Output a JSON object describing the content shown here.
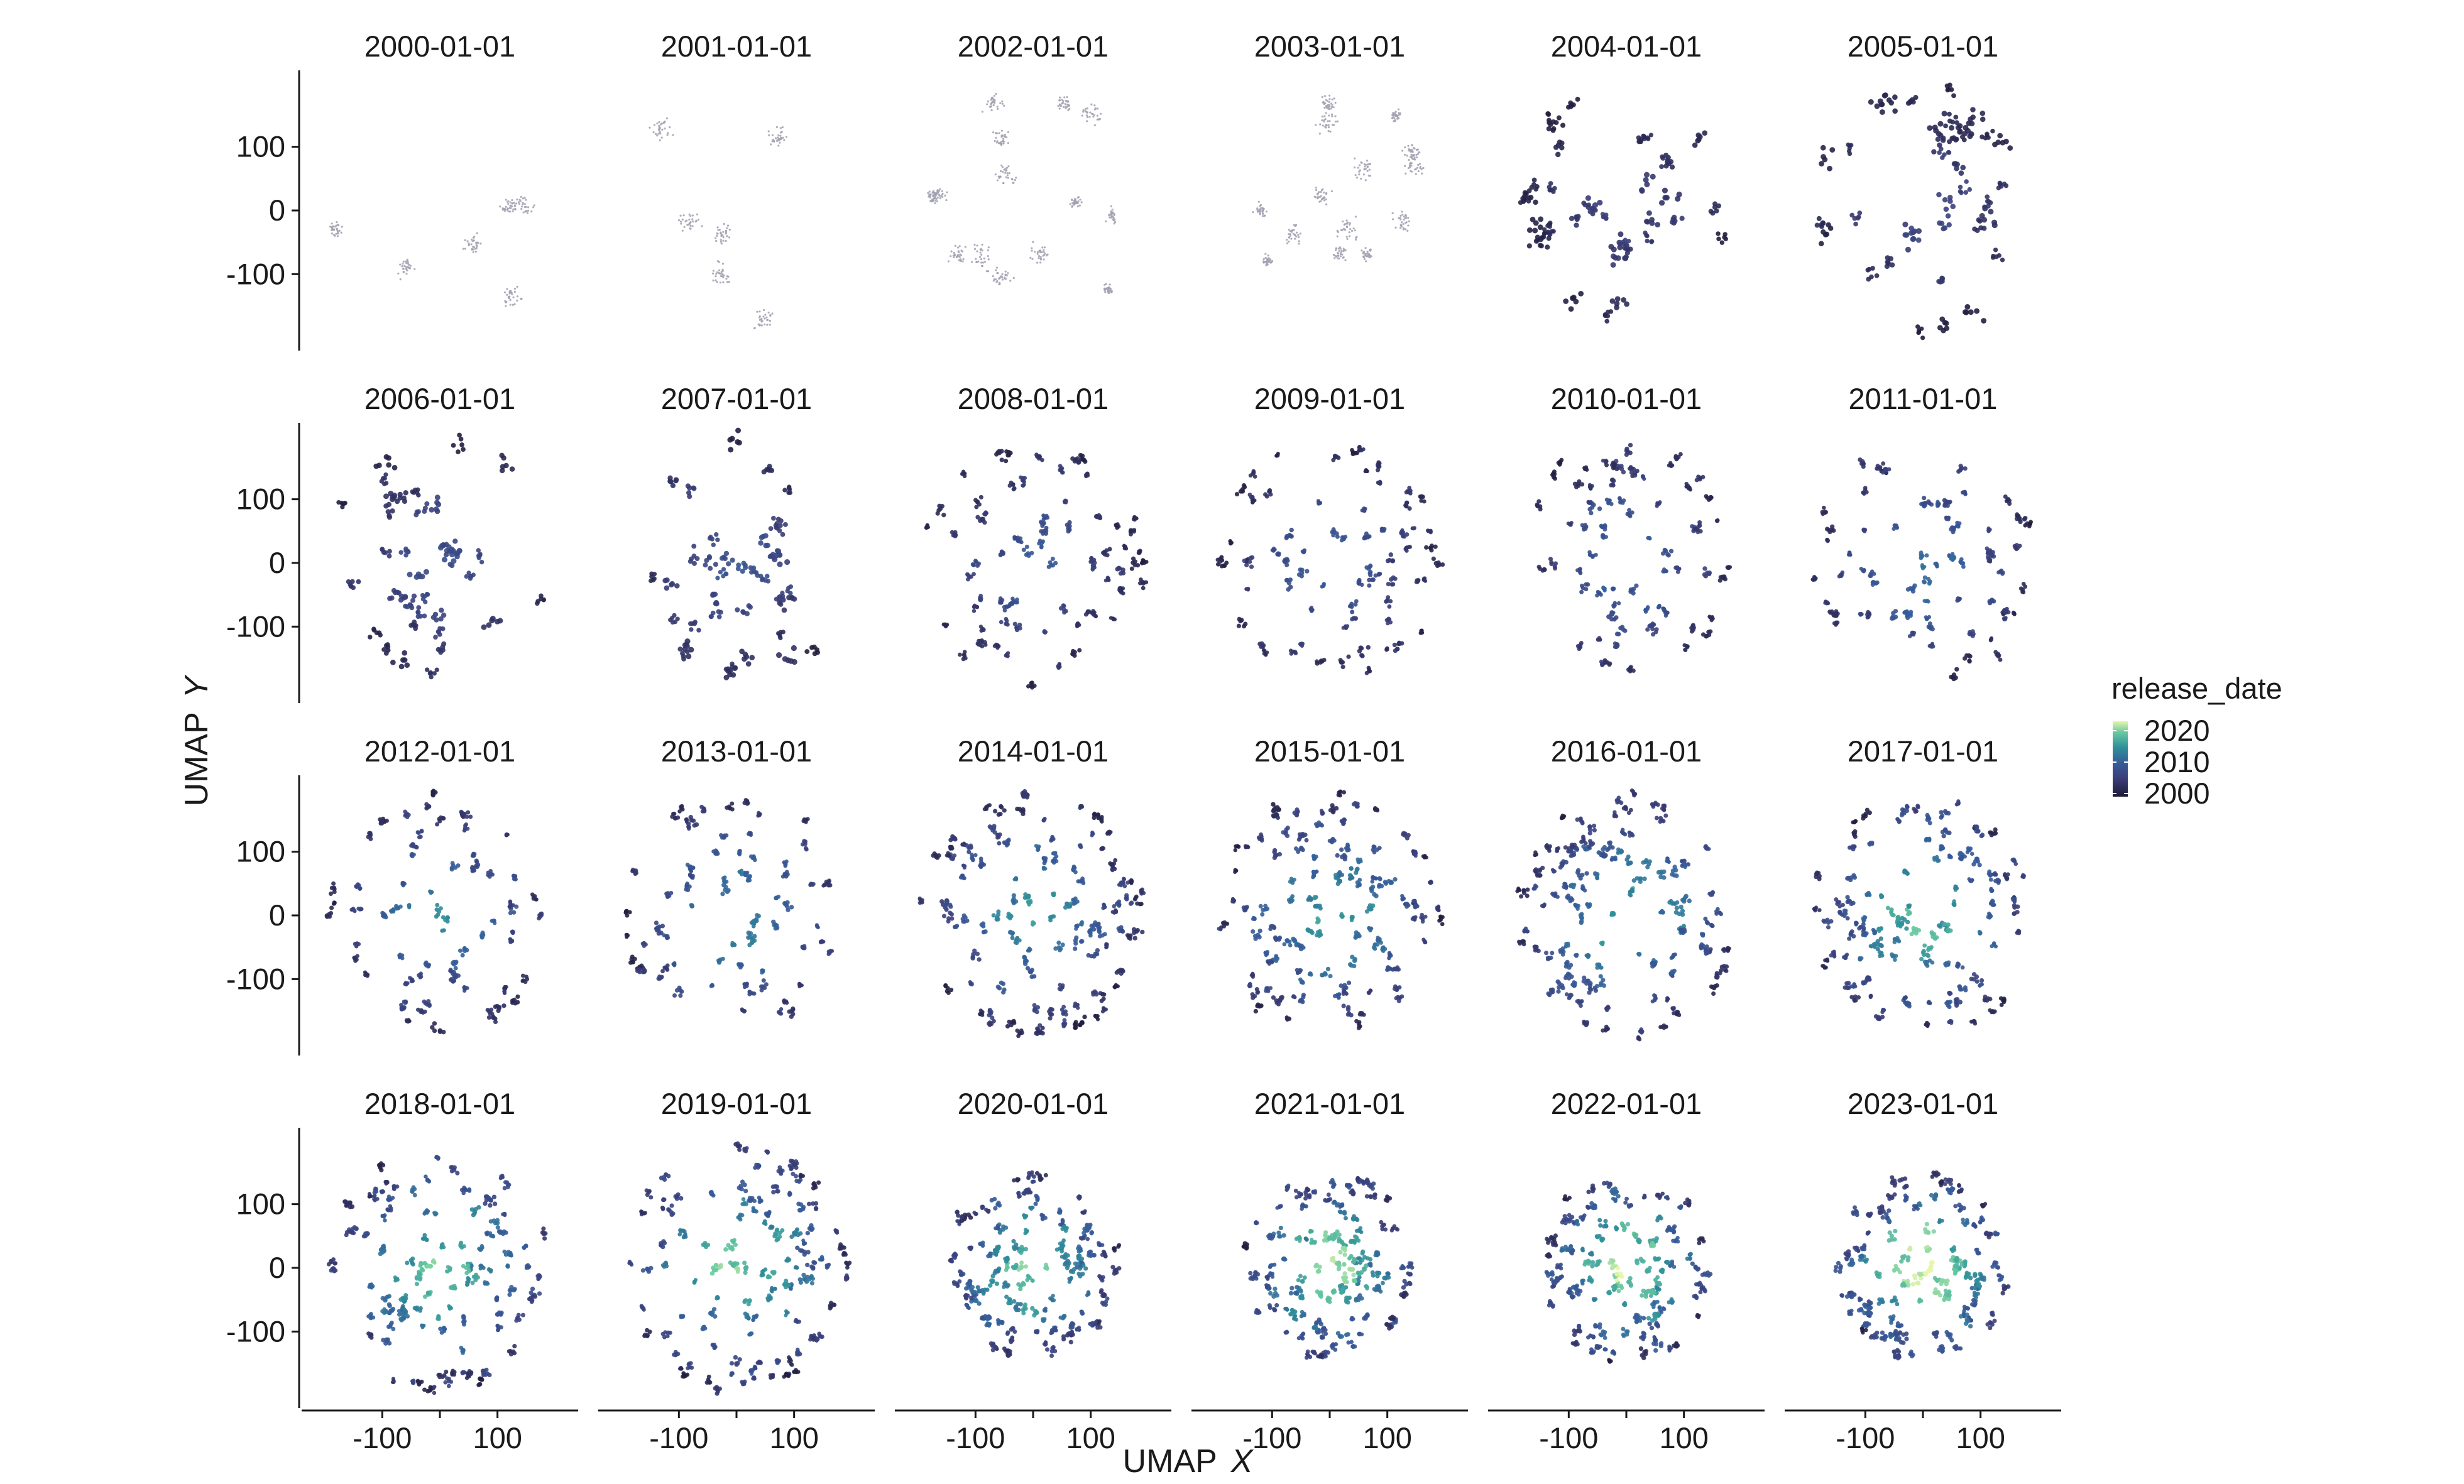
{
  "chart_data": {
    "type": "scatter",
    "facet_by": "snapshot date",
    "panels": [
      "2000-01-01",
      "2001-01-01",
      "2002-01-01",
      "2003-01-01",
      "2004-01-01",
      "2005-01-01",
      "2006-01-01",
      "2007-01-01",
      "2008-01-01",
      "2009-01-01",
      "2010-01-01",
      "2011-01-01",
      "2012-01-01",
      "2013-01-01",
      "2014-01-01",
      "2015-01-01",
      "2016-01-01",
      "2017-01-01",
      "2018-01-01",
      "2019-01-01",
      "2020-01-01",
      "2021-01-01",
      "2022-01-01",
      "2023-01-01"
    ],
    "layout": {
      "columns": 6,
      "rows": 4
    },
    "x": {
      "label_parts": [
        "UMAP",
        "X"
      ],
      "ticks": [
        -100,
        100
      ],
      "tick_labels": [
        "-100",
        "100"
      ],
      "range": [
        -240,
        240
      ]
    },
    "y": {
      "label_parts": [
        "UMAP",
        "Y"
      ],
      "ticks": [
        100,
        0,
        -100
      ],
      "tick_labels": [
        "100",
        "0",
        "-100"
      ],
      "range": [
        -220,
        220
      ]
    },
    "color": {
      "variable": "release_date",
      "scale": "continuous",
      "breaks": [
        2020,
        2010,
        2000
      ],
      "break_labels": [
        "2020",
        "2010",
        "2000"
      ],
      "range": [
        1999,
        2023
      ],
      "palette": [
        "#e6f6a8",
        "#66c8a0",
        "#2f8f99",
        "#355c9a",
        "#3b3f7a",
        "#1e1a37"
      ],
      "uncolored_note": "earliest panels drawn in light grey / slate"
    },
    "description_points": "Each panel is a UMAP embedding; points form clusters that spread out radially over time, colored by release_date.",
    "legend_position": "right"
  }
}
